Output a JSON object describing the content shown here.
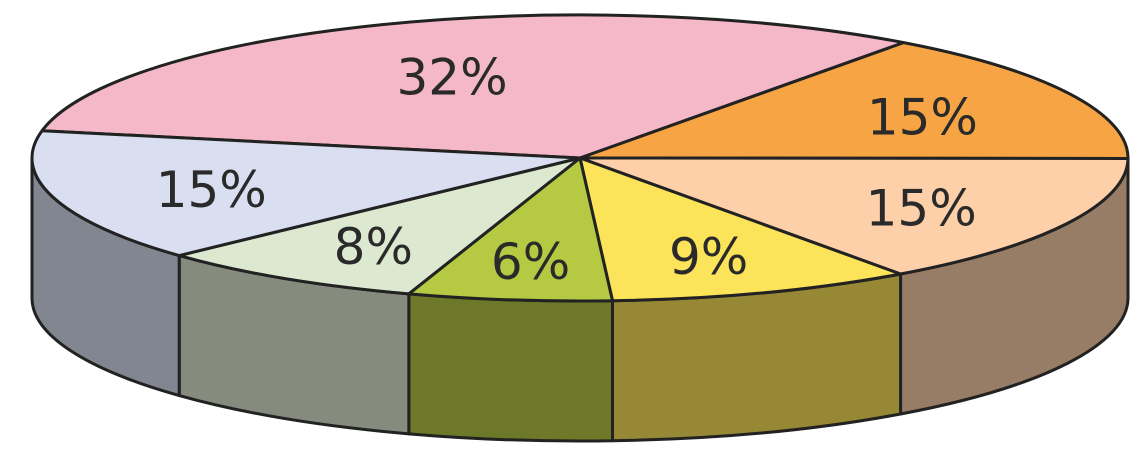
{
  "chart_data": {
    "type": "pie",
    "values": [
      32,
      15,
      15,
      9,
      6,
      8,
      15
    ],
    "value_labels": [
      "32%",
      "15%",
      "15%",
      "9%",
      "6%",
      "8%",
      "15%"
    ],
    "colors": [
      "#f4b8c8",
      "#f7a544",
      "#fdd0aa",
      "#fbe35a",
      "#b5c943",
      "#dde8d0",
      "#d9dff0"
    ]
  }
}
